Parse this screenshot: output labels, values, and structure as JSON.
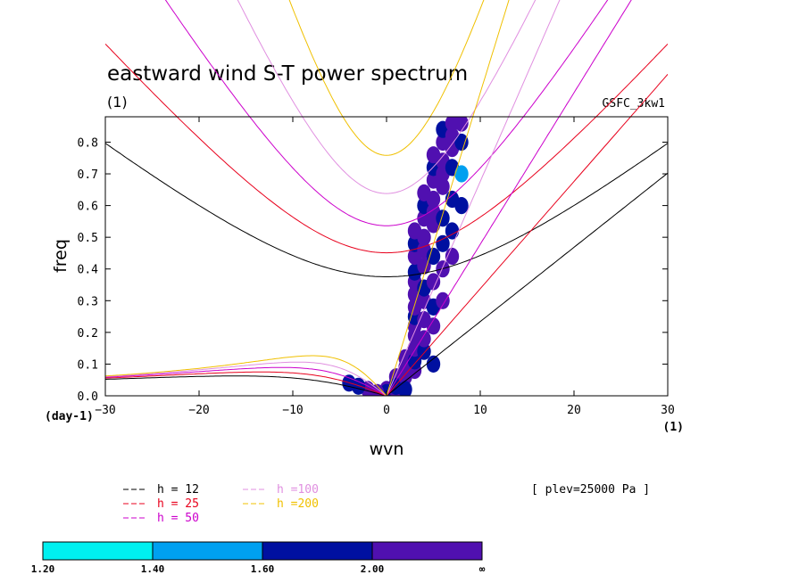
{
  "chart_data": {
    "type": "contour",
    "title": "eastward wind S-T power spectrum",
    "subtitle": "(1)",
    "dataset": "GSFC_3kw1",
    "xlabel": "wvn",
    "ylabel": "freq",
    "x_unit": "(1)",
    "y_unit": "(day-1)",
    "xlim": [
      -30,
      30
    ],
    "ylim": [
      0,
      0.88
    ],
    "x_ticks": [
      -30,
      -20,
      -10,
      0,
      10,
      20,
      30
    ],
    "y_ticks": [
      0.0,
      0.1,
      0.2,
      0.3,
      0.4,
      0.5,
      0.6,
      0.7,
      0.8
    ],
    "annotation": "[ plev=25000 Pa ]",
    "legend": [
      {
        "label": "h = 12",
        "color": "#000000",
        "h": 12
      },
      {
        "label": "h = 25",
        "color": "#e8001c",
        "h": 25
      },
      {
        "label": "h = 50",
        "color": "#cc00cc",
        "h": 50
      },
      {
        "label": "h =100",
        "color": "#e08fe0",
        "h": 100
      },
      {
        "label": "h =200",
        "color": "#f0c000",
        "h": 200
      }
    ],
    "colorbar": {
      "levels": [
        "1.20",
        "1.40",
        "1.60",
        "2.00",
        "∞"
      ],
      "colors": [
        "#00f0f0",
        "#00a0f0",
        "#0010a0",
        "#5010b0"
      ]
    },
    "cells": [
      [
        0,
        0.02,
        3
      ],
      [
        0,
        0.01,
        2
      ],
      [
        1,
        0.02,
        3
      ],
      [
        1,
        0.04,
        3
      ],
      [
        1,
        0.06,
        3
      ],
      [
        1,
        0.03,
        2
      ],
      [
        2,
        0.06,
        3
      ],
      [
        2,
        0.09,
        3
      ],
      [
        2,
        0.12,
        3
      ],
      [
        2,
        0.02,
        2
      ],
      [
        3,
        0.08,
        3
      ],
      [
        3,
        0.11,
        2
      ],
      [
        3,
        0.15,
        3
      ],
      [
        3,
        0.19,
        3
      ],
      [
        3,
        0.22,
        3
      ],
      [
        3,
        0.25,
        2
      ],
      [
        3,
        0.28,
        3
      ],
      [
        3,
        0.32,
        3
      ],
      [
        3,
        0.36,
        3
      ],
      [
        3,
        0.39,
        2
      ],
      [
        3,
        0.44,
        3
      ],
      [
        3,
        0.48,
        2
      ],
      [
        3,
        0.52,
        3
      ],
      [
        4,
        0.14,
        2
      ],
      [
        4,
        0.18,
        3
      ],
      [
        4,
        0.24,
        3
      ],
      [
        4,
        0.3,
        3
      ],
      [
        4,
        0.34,
        2
      ],
      [
        4,
        0.41,
        3
      ],
      [
        4,
        0.46,
        3
      ],
      [
        4,
        0.5,
        3
      ],
      [
        4,
        0.56,
        3
      ],
      [
        4,
        0.6,
        2
      ],
      [
        4,
        0.64,
        3
      ],
      [
        5,
        0.1,
        2
      ],
      [
        5,
        0.22,
        3
      ],
      [
        5,
        0.28,
        2
      ],
      [
        5,
        0.36,
        3
      ],
      [
        5,
        0.44,
        2
      ],
      [
        5,
        0.54,
        3
      ],
      [
        5,
        0.58,
        3
      ],
      [
        5,
        0.62,
        3
      ],
      [
        5,
        0.68,
        3
      ],
      [
        5,
        0.72,
        2
      ],
      [
        5,
        0.76,
        3
      ],
      [
        6,
        0.3,
        3
      ],
      [
        6,
        0.4,
        3
      ],
      [
        6,
        0.48,
        2
      ],
      [
        6,
        0.56,
        2
      ],
      [
        6,
        0.66,
        3
      ],
      [
        6,
        0.7,
        3
      ],
      [
        6,
        0.74,
        3
      ],
      [
        6,
        0.8,
        3
      ],
      [
        6,
        0.84,
        2
      ],
      [
        7,
        0.44,
        3
      ],
      [
        7,
        0.52,
        2
      ],
      [
        7,
        0.62,
        2
      ],
      [
        7,
        0.72,
        2
      ],
      [
        7,
        0.78,
        3
      ],
      [
        7,
        0.82,
        3
      ],
      [
        7,
        0.86,
        3
      ],
      [
        8,
        0.6,
        2
      ],
      [
        8,
        0.7,
        1
      ],
      [
        8,
        0.8,
        2
      ],
      [
        8,
        0.86,
        3
      ],
      [
        -2,
        0.02,
        3
      ],
      [
        -3,
        0.03,
        2
      ],
      [
        -4,
        0.04,
        2
      ],
      [
        -1,
        0.01,
        3
      ]
    ]
  }
}
